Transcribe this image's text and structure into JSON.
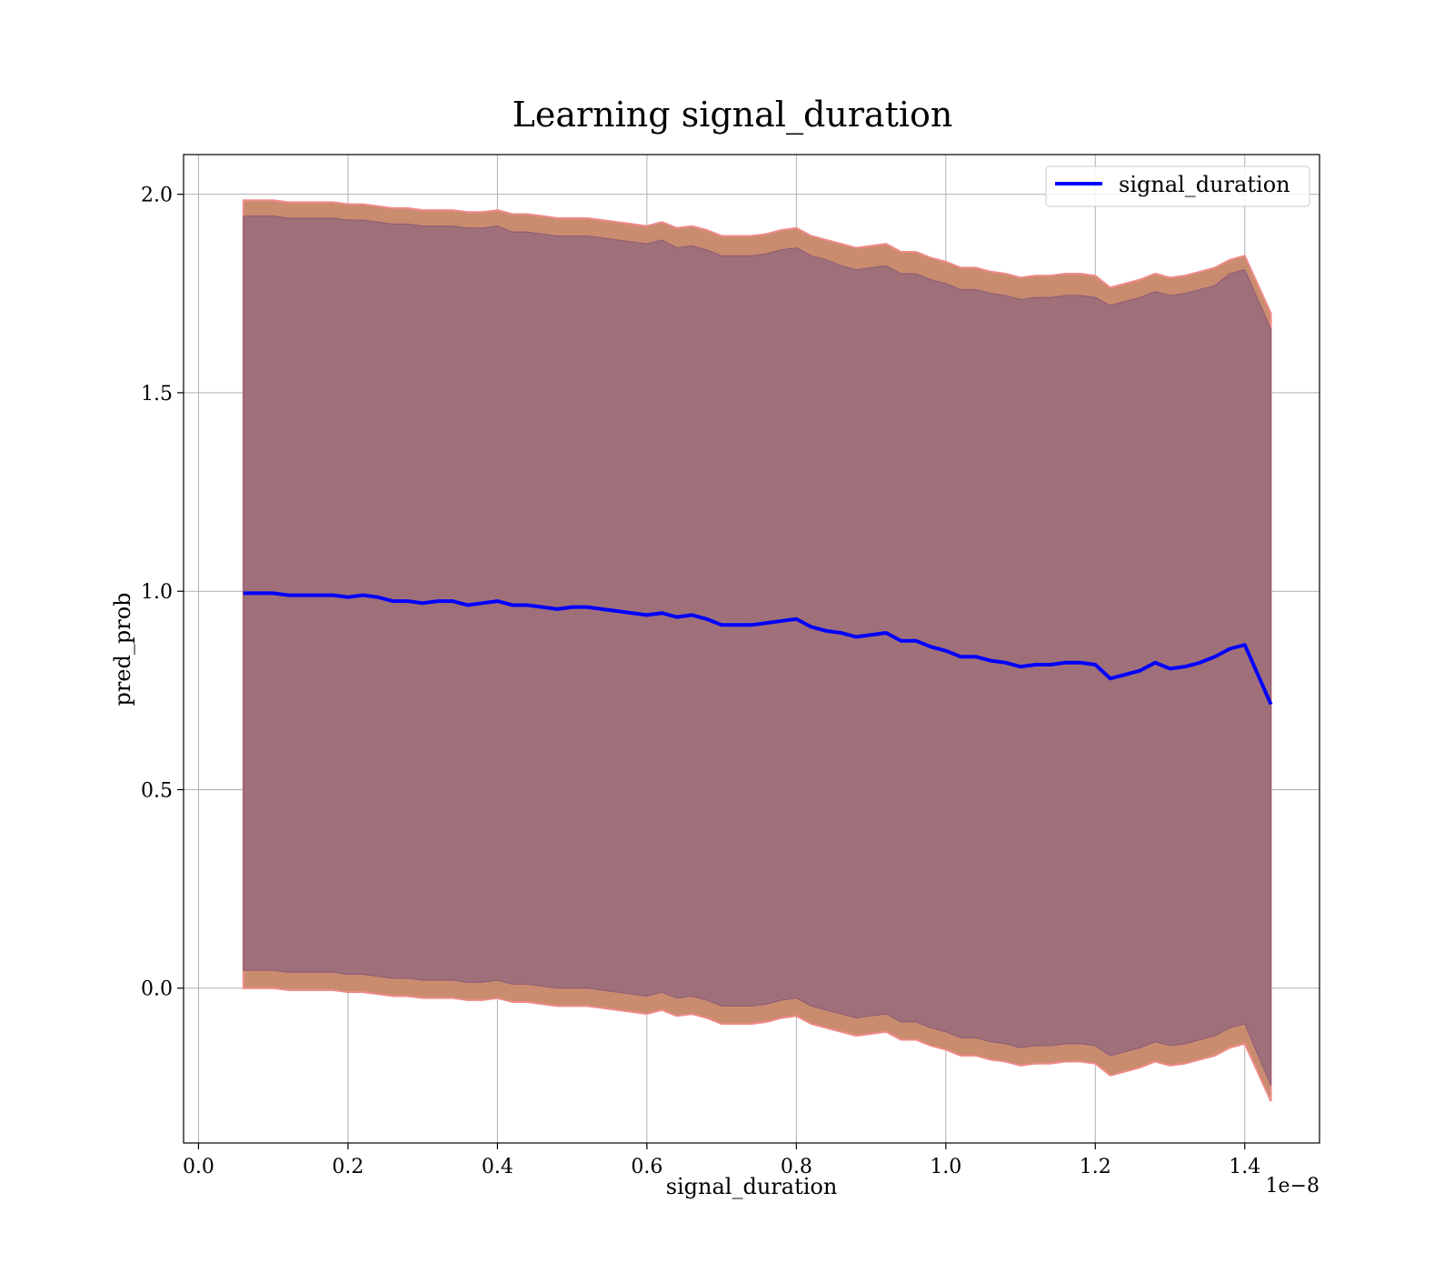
{
  "chart_data": {
    "type": "line",
    "title": "Learning signal_duration",
    "xlabel": "signal_duration",
    "ylabel": "pred_prob",
    "x_offset_text": "1e−8",
    "x_tick_labels": [
      "0.0",
      "0.2",
      "0.4",
      "0.6",
      "0.8",
      "1.0",
      "1.2",
      "1.4"
    ],
    "y_tick_labels": [
      "0.0",
      "0.5",
      "1.0",
      "1.5",
      "2.0"
    ],
    "x_ticks": [
      0.0,
      2e-09,
      4e-09,
      6e-09,
      8e-09,
      1e-08,
      1.2e-08,
      1.4e-08
    ],
    "y_ticks": [
      0.0,
      0.5,
      1.0,
      1.5,
      2.0
    ],
    "xlim": [
      -2e-10,
      1.5e-08
    ],
    "ylim": [
      -0.39,
      2.1
    ],
    "grid": true,
    "legend": {
      "position": "upper-right",
      "entries": [
        "signal_duration"
      ]
    },
    "colors": {
      "line": "#0000ff",
      "band_outer": "#c98c6e",
      "band_inner": "#a0707a",
      "band_edge": "#f08a8a",
      "grid": "#b0b0b0"
    },
    "series": [
      {
        "name": "signal_duration",
        "x": [
          6e-10,
          8e-10,
          1e-09,
          1.2e-09,
          1.4e-09,
          1.6e-09,
          1.8e-09,
          2e-09,
          2.2e-09,
          2.4e-09,
          2.6e-09,
          2.8e-09,
          3e-09,
          3.2e-09,
          3.4e-09,
          3.6e-09,
          3.8e-09,
          4e-09,
          4.2e-09,
          4.4e-09,
          4.6e-09,
          4.8e-09,
          5e-09,
          5.2e-09,
          5.4e-09,
          5.6e-09,
          5.8e-09,
          6e-09,
          6.2e-09,
          6.4e-09,
          6.6e-09,
          6.8e-09,
          7e-09,
          7.2e-09,
          7.4e-09,
          7.6e-09,
          7.8e-09,
          8e-09,
          8.2e-09,
          8.4e-09,
          8.6e-09,
          8.8e-09,
          9e-09,
          9.2e-09,
          9.4e-09,
          9.6e-09,
          9.8e-09,
          1e-08,
          1.02e-08,
          1.04e-08,
          1.06e-08,
          1.08e-08,
          1.1e-08,
          1.12e-08,
          1.14e-08,
          1.16e-08,
          1.18e-08,
          1.2e-08,
          1.22e-08,
          1.24e-08,
          1.26e-08,
          1.28e-08,
          1.3e-08,
          1.32e-08,
          1.34e-08,
          1.36e-08,
          1.38e-08,
          1.4e-08,
          1.435e-08
        ],
        "mean": [
          0.995,
          0.995,
          0.995,
          0.99,
          0.99,
          0.99,
          0.99,
          0.985,
          0.99,
          0.985,
          0.975,
          0.975,
          0.97,
          0.975,
          0.975,
          0.965,
          0.97,
          0.975,
          0.965,
          0.965,
          0.96,
          0.955,
          0.96,
          0.96,
          0.955,
          0.95,
          0.945,
          0.94,
          0.945,
          0.935,
          0.94,
          0.93,
          0.915,
          0.915,
          0.915,
          0.92,
          0.925,
          0.93,
          0.91,
          0.9,
          0.895,
          0.885,
          0.89,
          0.895,
          0.875,
          0.875,
          0.86,
          0.85,
          0.835,
          0.835,
          0.825,
          0.82,
          0.81,
          0.815,
          0.815,
          0.82,
          0.82,
          0.815,
          0.78,
          0.79,
          0.8,
          0.82,
          0.805,
          0.81,
          0.82,
          0.835,
          0.855,
          0.865,
          0.715
        ],
        "upper_outer": [
          1.985,
          1.985,
          1.985,
          1.98,
          1.98,
          1.98,
          1.98,
          1.975,
          1.975,
          1.97,
          1.965,
          1.965,
          1.96,
          1.96,
          1.96,
          1.955,
          1.955,
          1.96,
          1.95,
          1.95,
          1.945,
          1.94,
          1.94,
          1.94,
          1.935,
          1.93,
          1.925,
          1.92,
          1.93,
          1.915,
          1.92,
          1.91,
          1.895,
          1.895,
          1.895,
          1.9,
          1.91,
          1.915,
          1.895,
          1.885,
          1.875,
          1.865,
          1.87,
          1.875,
          1.855,
          1.855,
          1.84,
          1.83,
          1.815,
          1.815,
          1.805,
          1.8,
          1.79,
          1.795,
          1.795,
          1.8,
          1.8,
          1.795,
          1.765,
          1.775,
          1.785,
          1.8,
          1.79,
          1.795,
          1.805,
          1.815,
          1.835,
          1.845,
          1.7
        ],
        "upper_inner": [
          1.945,
          1.945,
          1.945,
          1.94,
          1.94,
          1.94,
          1.94,
          1.935,
          1.935,
          1.93,
          1.925,
          1.925,
          1.92,
          1.92,
          1.92,
          1.915,
          1.915,
          1.92,
          1.905,
          1.905,
          1.9,
          1.895,
          1.895,
          1.895,
          1.89,
          1.885,
          1.88,
          1.875,
          1.885,
          1.865,
          1.87,
          1.86,
          1.845,
          1.845,
          1.845,
          1.85,
          1.86,
          1.865,
          1.845,
          1.835,
          1.82,
          1.81,
          1.815,
          1.82,
          1.8,
          1.8,
          1.785,
          1.775,
          1.76,
          1.76,
          1.75,
          1.745,
          1.735,
          1.74,
          1.74,
          1.745,
          1.745,
          1.74,
          1.72,
          1.73,
          1.74,
          1.755,
          1.745,
          1.75,
          1.76,
          1.77,
          1.8,
          1.81,
          1.66
        ],
        "lower_inner": [
          0.045,
          0.045,
          0.045,
          0.04,
          0.04,
          0.04,
          0.04,
          0.035,
          0.035,
          0.03,
          0.025,
          0.025,
          0.02,
          0.02,
          0.02,
          0.015,
          0.015,
          0.02,
          0.01,
          0.01,
          0.005,
          0.0,
          0.0,
          0.0,
          -0.005,
          -0.01,
          -0.015,
          -0.02,
          -0.01,
          -0.025,
          -0.02,
          -0.03,
          -0.045,
          -0.045,
          -0.045,
          -0.04,
          -0.03,
          -0.025,
          -0.045,
          -0.055,
          -0.065,
          -0.075,
          -0.07,
          -0.065,
          -0.085,
          -0.085,
          -0.1,
          -0.11,
          -0.125,
          -0.125,
          -0.135,
          -0.14,
          -0.15,
          -0.145,
          -0.145,
          -0.14,
          -0.14,
          -0.145,
          -0.17,
          -0.16,
          -0.15,
          -0.135,
          -0.145,
          -0.14,
          -0.13,
          -0.12,
          -0.1,
          -0.09,
          -0.245
        ],
        "lower_outer": [
          0.0,
          0.0,
          0.0,
          -0.005,
          -0.005,
          -0.005,
          -0.005,
          -0.01,
          -0.01,
          -0.015,
          -0.02,
          -0.02,
          -0.025,
          -0.025,
          -0.025,
          -0.03,
          -0.03,
          -0.025,
          -0.035,
          -0.035,
          -0.04,
          -0.045,
          -0.045,
          -0.045,
          -0.05,
          -0.055,
          -0.06,
          -0.065,
          -0.055,
          -0.07,
          -0.065,
          -0.075,
          -0.09,
          -0.09,
          -0.09,
          -0.085,
          -0.075,
          -0.07,
          -0.09,
          -0.1,
          -0.11,
          -0.12,
          -0.115,
          -0.11,
          -0.13,
          -0.13,
          -0.145,
          -0.155,
          -0.17,
          -0.17,
          -0.18,
          -0.185,
          -0.195,
          -0.19,
          -0.19,
          -0.185,
          -0.185,
          -0.19,
          -0.22,
          -0.21,
          -0.2,
          -0.185,
          -0.195,
          -0.19,
          -0.18,
          -0.17,
          -0.15,
          -0.14,
          -0.285
        ]
      }
    ]
  }
}
